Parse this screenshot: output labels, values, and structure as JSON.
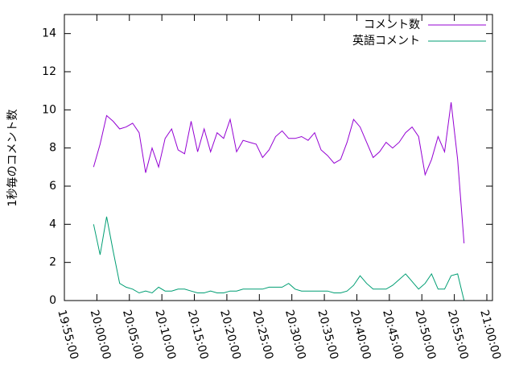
{
  "chart_data": {
    "type": "line",
    "ylabel": "1秒毎のコメント数",
    "x": [
      "19:59:30",
      "20:00:30",
      "20:01:30",
      "20:02:30",
      "20:03:30",
      "20:04:30",
      "20:05:30",
      "20:06:30",
      "20:07:30",
      "20:08:30",
      "20:09:30",
      "20:10:30",
      "20:11:30",
      "20:12:30",
      "20:13:30",
      "20:14:30",
      "20:15:30",
      "20:16:30",
      "20:17:30",
      "20:18:30",
      "20:19:30",
      "20:20:30",
      "20:21:30",
      "20:22:30",
      "20:23:30",
      "20:24:30",
      "20:25:30",
      "20:26:30",
      "20:27:30",
      "20:28:30",
      "20:29:30",
      "20:30:30",
      "20:31:30",
      "20:32:30",
      "20:33:30",
      "20:34:30",
      "20:35:30",
      "20:36:30",
      "20:37:30",
      "20:38:30",
      "20:39:30",
      "20:40:30",
      "20:41:30",
      "20:42:30",
      "20:43:30",
      "20:44:30",
      "20:45:30",
      "20:46:30",
      "20:47:30",
      "20:48:30",
      "20:49:30",
      "20:50:30",
      "20:51:30",
      "20:52:30",
      "20:53:30",
      "20:54:30",
      "20:55:30",
      "20:56:30"
    ],
    "series": [
      {
        "name": "コメント数",
        "color": "#9400d3",
        "values": [
          7.0,
          8.2,
          9.7,
          9.4,
          9.0,
          9.1,
          9.3,
          8.8,
          6.7,
          8.0,
          7.0,
          8.5,
          9.0,
          7.9,
          7.7,
          9.4,
          7.8,
          9.0,
          7.8,
          8.8,
          8.5,
          9.5,
          7.8,
          8.4,
          8.3,
          8.2,
          7.5,
          7.9,
          8.6,
          8.9,
          8.5,
          8.5,
          8.6,
          8.4,
          8.8,
          7.9,
          7.6,
          7.2,
          7.4,
          8.3,
          9.5,
          9.1,
          8.3,
          7.5,
          7.8,
          8.3,
          8.0,
          8.3,
          8.8,
          9.1,
          8.6,
          6.6,
          7.4,
          8.6,
          7.8,
          10.4,
          7.4,
          3.0
        ]
      },
      {
        "name": "英語コメント",
        "color": "#009e73",
        "values": [
          4.0,
          2.4,
          4.4,
          2.6,
          0.9,
          0.7,
          0.6,
          0.4,
          0.5,
          0.4,
          0.7,
          0.5,
          0.5,
          0.6,
          0.6,
          0.5,
          0.4,
          0.4,
          0.5,
          0.4,
          0.4,
          0.5,
          0.5,
          0.6,
          0.6,
          0.6,
          0.6,
          0.7,
          0.7,
          0.7,
          0.9,
          0.6,
          0.5,
          0.5,
          0.5,
          0.5,
          0.5,
          0.4,
          0.4,
          0.5,
          0.8,
          1.3,
          0.9,
          0.6,
          0.6,
          0.6,
          0.8,
          1.1,
          1.4,
          1.0,
          0.6,
          0.9,
          1.4,
          0.6,
          0.6,
          1.3,
          1.4,
          0.0
        ]
      }
    ],
    "xlim": [
      "19:55:00",
      "21:00:52"
    ],
    "xticks": [
      "19:55:00",
      "20:00:00",
      "20:05:00",
      "20:10:00",
      "20:15:00",
      "20:20:00",
      "20:25:00",
      "20:30:00",
      "20:35:00",
      "20:40:00",
      "20:45:00",
      "20:50:00",
      "20:55:00",
      "21:00:00"
    ],
    "ylim": [
      0,
      15
    ],
    "yticks": [
      0,
      2,
      4,
      6,
      8,
      10,
      12,
      14
    ],
    "legend": "top-right"
  }
}
